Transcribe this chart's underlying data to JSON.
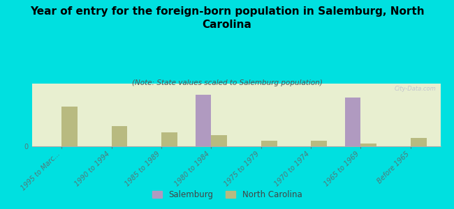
{
  "title": "Year of entry for the foreign-born population in Salemburg, North\nCarolina",
  "subtitle": "(Note: State values scaled to Salemburg population)",
  "categories": [
    "1995 to Marc...",
    "1990 to 1994",
    "1985 to 1989",
    "1980 to 1984",
    "1975 to 1979",
    "1970 to 1974",
    "1965 to 1969",
    "Before 1965"
  ],
  "salemburg_values": [
    0,
    0,
    0,
    18,
    0,
    0,
    17,
    0
  ],
  "nc_values": [
    14,
    7,
    5,
    4,
    2,
    2,
    1,
    3
  ],
  "salemburg_color": "#b09ac0",
  "nc_color": "#b8ba80",
  "background_color": "#00e0e0",
  "plot_bg_color": "#e8efd0",
  "watermark": "City-Data.com",
  "legend_salemburg": "Salemburg",
  "legend_nc": "North Carolina",
  "title_fontsize": 11,
  "subtitle_fontsize": 7.5,
  "tick_fontsize": 7,
  "tick_color": "#557777"
}
